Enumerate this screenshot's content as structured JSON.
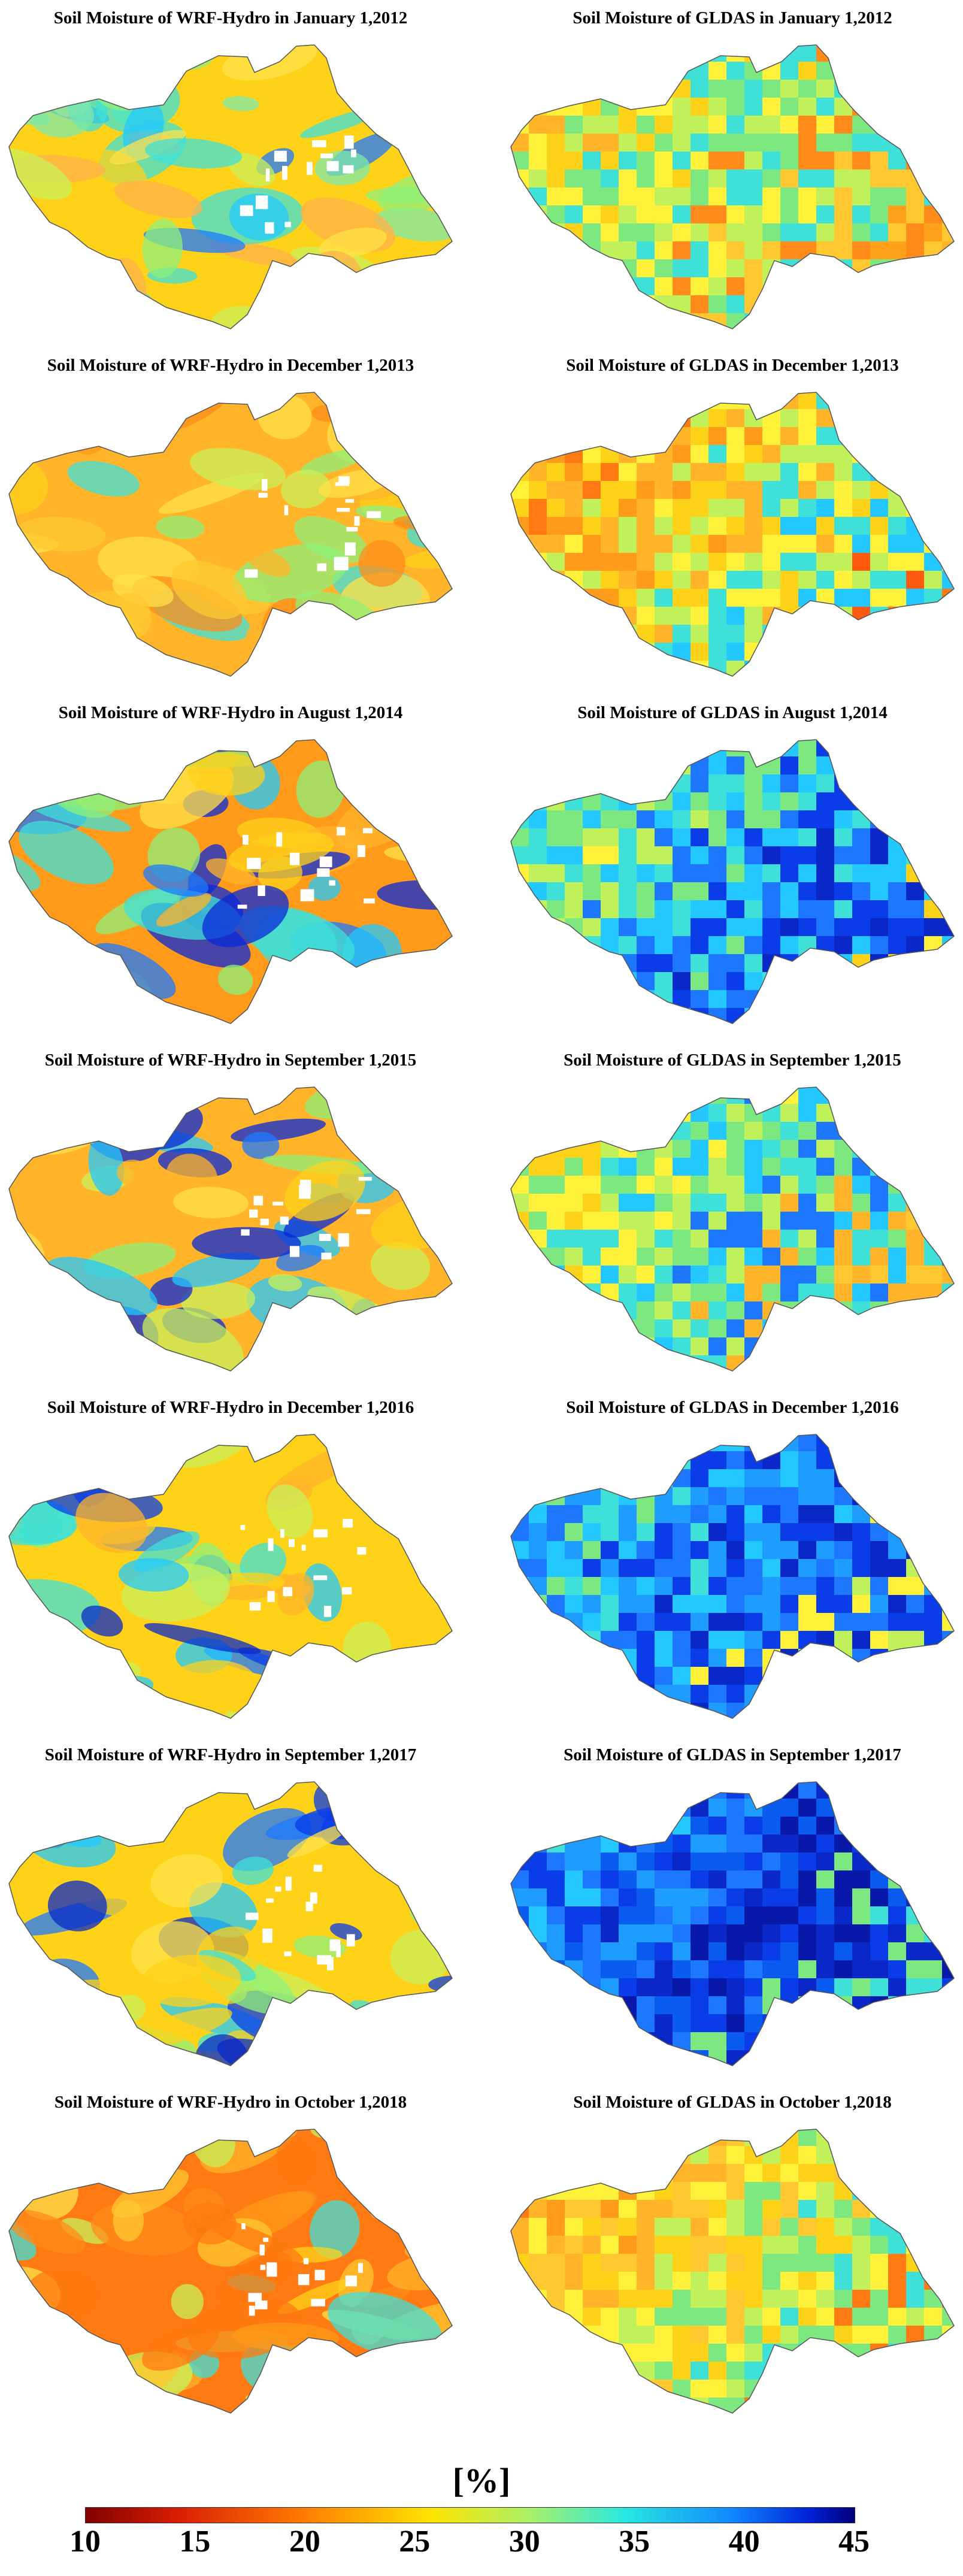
{
  "figure": {
    "panels": [
      {
        "id": "wrf-2012",
        "title": "Soil Moisture of WRF-Hydro in January 1,2012",
        "model": "WRF-Hydro",
        "date": "January 1,2012",
        "palette": [
          "#ffd21a",
          "#ffe14a",
          "#c8f05a",
          "#8ef07a",
          "#3ee0d8",
          "#22c8ff",
          "#1e78ff",
          "#ffb14a",
          "#7ee8a8"
        ]
      },
      {
        "id": "gldas-2012",
        "title": "Soil Moisture of GLDAS in January 1,2012",
        "model": "GLDAS",
        "date": "January 1,2012",
        "palette": [
          "#ffa21a",
          "#ffb42a",
          "#ffd21a",
          "#fff03a",
          "#c0f05a",
          "#7ee880",
          "#3ee0d8",
          "#ff8c1a",
          "#ffc830"
        ]
      },
      {
        "id": "wrf-2013",
        "title": "Soil Moisture of WRF-Hydro in December 1,2013",
        "model": "WRF-Hydro",
        "date": "December 1,2013",
        "palette": [
          "#ffb42a",
          "#ffc830",
          "#ffd21a",
          "#ffe14a",
          "#ff9a1a",
          "#c8f05a",
          "#8ef07a",
          "#3ee0d8",
          "#ff8c1a"
        ]
      },
      {
        "id": "gldas-2013",
        "title": "Soil Moisture of GLDAS in December 1,2013",
        "model": "GLDAS",
        "date": "December 1,2013",
        "palette": [
          "#ff5a10",
          "#ff7a12",
          "#ff9a1a",
          "#ffb42a",
          "#ffd21a",
          "#fff03a",
          "#c0f05a",
          "#3ee0d8",
          "#22c8ff"
        ]
      },
      {
        "id": "wrf-2014",
        "title": "Soil Moisture of WRF-Hydro in August 1,2014",
        "model": "WRF-Hydro",
        "date": "August 1,2014",
        "palette": [
          "#ff9a1a",
          "#ffb42a",
          "#ffd21a",
          "#ffe14a",
          "#8ef07a",
          "#3ee0d8",
          "#22c8ff",
          "#1e78ff",
          "#0a28d8"
        ]
      },
      {
        "id": "gldas-2014",
        "title": "Soil Moisture of GLDAS in August 1,2014",
        "model": "GLDAS",
        "date": "August 1,2014",
        "palette": [
          "#ffd21a",
          "#fff03a",
          "#c0f05a",
          "#7ee880",
          "#3ee0d8",
          "#22c8ff",
          "#1e78ff",
          "#0a3ce8",
          "#0a28c8"
        ]
      },
      {
        "id": "wrf-2015",
        "title": "Soil Moisture of WRF-Hydro in September 1,2015",
        "model": "WRF-Hydro",
        "date": "September 1,2015",
        "palette": [
          "#ffb42a",
          "#ffd21a",
          "#ffe14a",
          "#c8f05a",
          "#8ef07a",
          "#3ee0d8",
          "#22c8ff",
          "#1e78ff",
          "#0a28d8"
        ]
      },
      {
        "id": "gldas-2015",
        "title": "Soil Moisture of GLDAS in September 1,2015",
        "model": "GLDAS",
        "date": "September 1,2015",
        "palette": [
          "#ffc830",
          "#ffd21a",
          "#fff03a",
          "#c0f05a",
          "#7ee880",
          "#3ee0d8",
          "#22c8ff",
          "#1e78ff",
          "#ffb42a"
        ]
      },
      {
        "id": "wrf-2016",
        "title": "Soil Moisture of WRF-Hydro in December 1,2016",
        "model": "WRF-Hydro",
        "date": "December 1,2016",
        "palette": [
          "#ffd21a",
          "#c8f05a",
          "#8ef07a",
          "#3ee0d8",
          "#22c8ff",
          "#1e78ff",
          "#0a3ce8",
          "#0a28c8",
          "#ffb42a"
        ]
      },
      {
        "id": "gldas-2016",
        "title": "Soil Moisture of GLDAS in December 1,2016",
        "model": "GLDAS",
        "date": "December 1,2016",
        "palette": [
          "#c0f05a",
          "#7ee880",
          "#3ee0d8",
          "#22c8ff",
          "#1e9cff",
          "#1e78ff",
          "#0a3ce8",
          "#0a28c8",
          "#fff03a"
        ]
      },
      {
        "id": "wrf-2017",
        "title": "Soil Moisture of WRF-Hydro in September 1,2017",
        "model": "WRF-Hydro",
        "date": "September 1,2017",
        "palette": [
          "#ffd21a",
          "#c8f05a",
          "#8ef07a",
          "#3ee0d8",
          "#22c8ff",
          "#1e78ff",
          "#0a3ce8",
          "#0a28c8",
          "#ffe14a"
        ]
      },
      {
        "id": "gldas-2017",
        "title": "Soil Moisture of GLDAS in September 1,2017",
        "model": "GLDAS",
        "date": "September 1,2017",
        "palette": [
          "#3ee0d8",
          "#22c8ff",
          "#1e9cff",
          "#1e78ff",
          "#0a5cf0",
          "#0a3ce8",
          "#0a28c8",
          "#0818a8",
          "#7ee880"
        ]
      },
      {
        "id": "wrf-2018",
        "title": "Soil Moisture of WRF-Hydro in October 1,2018",
        "model": "WRF-Hydro",
        "date": "October 1,2018",
        "palette": [
          "#ff7a12",
          "#ff8c1a",
          "#ff9a1a",
          "#ffb42a",
          "#ffc830",
          "#ffd21a",
          "#ffe14a",
          "#c8f05a",
          "#3ee0d8"
        ]
      },
      {
        "id": "gldas-2018",
        "title": "Soil Moisture of GLDAS in October 1,2018",
        "model": "GLDAS",
        "date": "October 1,2018",
        "palette": [
          "#ff7a12",
          "#ff9a1a",
          "#ffb42a",
          "#ffc830",
          "#ffd21a",
          "#fff03a",
          "#c0f05a",
          "#7ee880",
          "#3ee0d8"
        ]
      }
    ],
    "colorbar": {
      "unit_label": "[%]",
      "ticks": [
        "10",
        "15",
        "20",
        "25",
        "30",
        "35",
        "40",
        "45"
      ],
      "range": [
        10,
        45
      ],
      "colors": [
        "#800000",
        "#d81e05",
        "#ff7a00",
        "#ffe400",
        "#a8f06a",
        "#29e8e0",
        "#1188ff",
        "#0022d8",
        "#00007a"
      ]
    }
  }
}
